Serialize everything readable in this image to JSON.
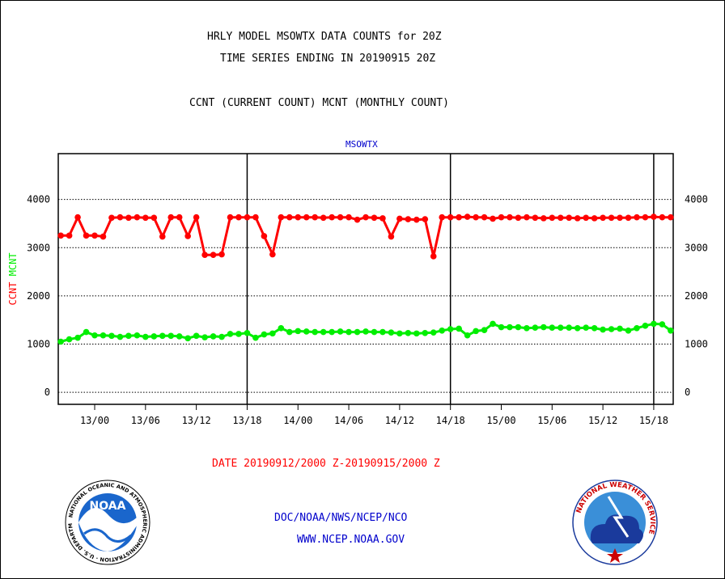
{
  "header": {
    "title_line1": "HRLY MODEL MSOWTX DATA COUNTS for 20Z",
    "title_line2": "TIME SERIES ENDING IN 20190915 20Z",
    "legend_line": "CCNT (CURRENT COUNT) MCNT (MONTHLY COUNT)"
  },
  "footer": {
    "date_range": "DATE 20190912/2000 Z-20190915/2000 Z",
    "org_line": "DOC/NOAA/NWS/NCEP/NCO",
    "url_line": "WWW.NCEP.NOAA.GOV"
  },
  "logos": {
    "noaa_text": "NOAA",
    "noaa_ring_text": "NATIONAL OCEANIC AND ATMOSPHERIC ADMINISTRATION · U.S. DEPARTMENT OF COMMERCE ·",
    "nws_ring_text": "NATIONAL WEATHER SERVICE"
  },
  "colors": {
    "ccnt": "#ff0000",
    "mcnt": "#00ee00",
    "title_blue": "#0000cc",
    "axis": "#000000"
  },
  "chart_data": {
    "type": "line",
    "title": "MSOWTX",
    "ylabel_parts": [
      "CCNT",
      "MCNT"
    ],
    "ylim": [
      -250,
      4950
    ],
    "yticks": [
      0,
      1000,
      2000,
      3000,
      4000
    ],
    "ytick_labels": [
      "0",
      "1000",
      "2000",
      "3000",
      "4000"
    ],
    "x_unit": "hours since 2019-09-12 20Z",
    "xlim": [
      -0.3,
      72.3
    ],
    "xticks": [
      4,
      10,
      16,
      22,
      28,
      34,
      40,
      46,
      52,
      58,
      64,
      70
    ],
    "xtick_labels": [
      "13/00",
      "13/06",
      "13/12",
      "13/18",
      "14/00",
      "14/06",
      "14/12",
      "14/18",
      "15/00",
      "15/06",
      "15/12",
      "15/18"
    ],
    "day_boundaries": [
      22,
      46,
      70
    ],
    "grid": "horizontal dotted",
    "legend": "none",
    "series": [
      {
        "name": "CCNT",
        "x": [
          0,
          1,
          2,
          3,
          4,
          5,
          6,
          7,
          8,
          9,
          10,
          11,
          12,
          13,
          14,
          15,
          16,
          17,
          18,
          19,
          20,
          21,
          22,
          23,
          24,
          25,
          26,
          27,
          28,
          29,
          30,
          31,
          32,
          33,
          34,
          35,
          36,
          37,
          38,
          39,
          40,
          41,
          42,
          43,
          44,
          45,
          46,
          47,
          48,
          49,
          50,
          51,
          52,
          53,
          54,
          55,
          56,
          57,
          58,
          59,
          60,
          61,
          62,
          63,
          64,
          65,
          66,
          67,
          68,
          69,
          70,
          71,
          72
        ],
        "values": [
          3250,
          3250,
          3630,
          3250,
          3250,
          3230,
          3620,
          3630,
          3620,
          3630,
          3620,
          3620,
          3230,
          3630,
          3630,
          3240,
          3630,
          2850,
          2850,
          2860,
          3630,
          3630,
          3630,
          3630,
          3240,
          2860,
          3630,
          3630,
          3630,
          3630,
          3630,
          3620,
          3630,
          3630,
          3630,
          3580,
          3630,
          3620,
          3610,
          3230,
          3600,
          3590,
          3580,
          3590,
          2820,
          3630,
          3630,
          3630,
          3640,
          3630,
          3630,
          3600,
          3630,
          3630,
          3620,
          3630,
          3620,
          3610,
          3620,
          3620,
          3620,
          3610,
          3620,
          3610,
          3620,
          3620,
          3620,
          3620,
          3630,
          3630,
          3640,
          3630,
          3630
        ]
      },
      {
        "name": "MCNT",
        "x": [
          0,
          1,
          2,
          3,
          4,
          5,
          6,
          7,
          8,
          9,
          10,
          11,
          12,
          13,
          14,
          15,
          16,
          17,
          18,
          19,
          20,
          21,
          22,
          23,
          24,
          25,
          26,
          27,
          28,
          29,
          30,
          31,
          32,
          33,
          34,
          35,
          36,
          37,
          38,
          39,
          40,
          41,
          42,
          43,
          44,
          45,
          46,
          47,
          48,
          49,
          50,
          51,
          52,
          53,
          54,
          55,
          56,
          57,
          58,
          59,
          60,
          61,
          62,
          63,
          64,
          65,
          66,
          67,
          68,
          69,
          70,
          71,
          72
        ],
        "values": [
          1050,
          1100,
          1130,
          1250,
          1180,
          1180,
          1170,
          1150,
          1170,
          1180,
          1150,
          1160,
          1170,
          1170,
          1160,
          1120,
          1170,
          1140,
          1160,
          1150,
          1210,
          1210,
          1230,
          1130,
          1200,
          1220,
          1330,
          1250,
          1270,
          1260,
          1250,
          1250,
          1250,
          1260,
          1250,
          1250,
          1260,
          1250,
          1250,
          1240,
          1220,
          1230,
          1220,
          1230,
          1240,
          1280,
          1310,
          1320,
          1180,
          1270,
          1290,
          1420,
          1350,
          1350,
          1350,
          1330,
          1340,
          1350,
          1340,
          1340,
          1340,
          1330,
          1340,
          1330,
          1300,
          1310,
          1320,
          1280,
          1330,
          1380,
          1420,
          1410,
          1280
        ]
      }
    ]
  }
}
